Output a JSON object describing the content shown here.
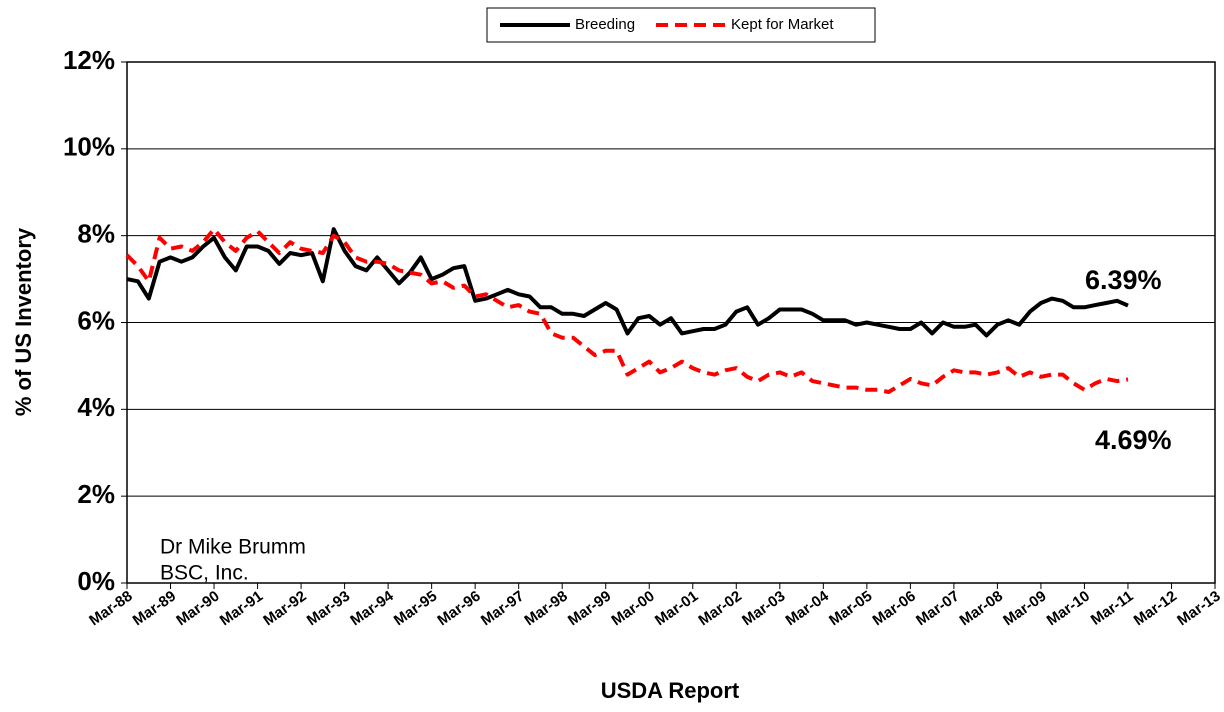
{
  "chart_data": {
    "type": "line",
    "y_label": "% of US Inventory",
    "x_label": "USDA Report",
    "x": [
      0,
      0.25,
      0.5,
      0.75,
      1,
      1.25,
      1.5,
      1.75,
      2,
      2.25,
      2.5,
      2.75,
      3,
      3.25,
      3.5,
      3.75,
      4,
      4.25,
      4.5,
      4.75,
      5,
      5.25,
      5.5,
      5.75,
      6,
      6.25,
      6.5,
      6.75,
      7,
      7.25,
      7.5,
      7.75,
      8,
      8.25,
      8.5,
      8.75,
      9,
      9.25,
      9.5,
      9.75,
      10,
      10.25,
      10.5,
      10.75,
      11,
      11.25,
      11.5,
      11.75,
      12,
      12.25,
      12.5,
      12.75,
      13,
      13.25,
      13.5,
      13.75,
      14,
      14.25,
      14.5,
      14.75,
      15,
      15.25,
      15.5,
      15.75,
      16,
      16.25,
      16.5,
      16.75,
      17,
      17.25,
      17.5,
      17.75,
      18,
      18.25,
      18.5,
      18.75,
      19,
      19.25,
      19.5,
      19.75,
      20,
      20.25,
      20.5,
      20.75,
      21,
      21.25,
      21.5,
      21.75,
      22,
      22.25,
      22.5,
      22.75,
      23
    ],
    "series": [
      {
        "name": "Breeding",
        "color": "#000000",
        "dash": false,
        "values": [
          7.0,
          6.95,
          6.55,
          7.4,
          7.5,
          7.4,
          7.5,
          7.75,
          7.95,
          7.5,
          7.2,
          7.75,
          7.75,
          7.65,
          7.35,
          7.6,
          7.55,
          7.6,
          6.95,
          8.15,
          7.65,
          7.3,
          7.2,
          7.5,
          7.2,
          6.9,
          7.15,
          7.5,
          7.0,
          7.1,
          7.25,
          7.3,
          6.5,
          6.55,
          6.65,
          6.75,
          6.65,
          6.6,
          6.35,
          6.35,
          6.2,
          6.2,
          6.15,
          6.3,
          6.45,
          6.3,
          5.75,
          6.1,
          6.15,
          5.95,
          6.1,
          5.75,
          5.8,
          5.85,
          5.85,
          5.95,
          6.25,
          6.35,
          5.95,
          6.1,
          6.3,
          6.3,
          6.3,
          6.2,
          6.05,
          6.05,
          6.05,
          5.95,
          6.0,
          5.95,
          5.9,
          5.85,
          5.85,
          6.0,
          5.75,
          6.0,
          5.9,
          5.9,
          5.95,
          5.7,
          5.95,
          6.05,
          5.95,
          6.25,
          6.45,
          6.55,
          6.5,
          6.35,
          6.35,
          6.4,
          6.45,
          6.5,
          6.39
        ]
      },
      {
        "name": "Kept for Market",
        "color": "#ff0000",
        "dash": true,
        "values": [
          7.55,
          7.3,
          6.95,
          7.95,
          7.7,
          7.75,
          7.65,
          7.85,
          8.15,
          7.85,
          7.65,
          7.95,
          8.1,
          7.85,
          7.6,
          7.85,
          7.7,
          7.65,
          7.6,
          8.0,
          7.85,
          7.5,
          7.4,
          7.4,
          7.35,
          7.2,
          7.15,
          7.1,
          6.9,
          6.95,
          6.8,
          6.85,
          6.6,
          6.65,
          6.5,
          6.35,
          6.4,
          6.25,
          6.2,
          5.75,
          5.65,
          5.65,
          5.45,
          5.25,
          5.35,
          5.35,
          4.8,
          4.95,
          5.1,
          4.85,
          4.95,
          5.1,
          4.95,
          4.85,
          4.8,
          4.9,
          4.95,
          4.75,
          4.65,
          4.8,
          4.85,
          4.75,
          4.85,
          4.65,
          4.6,
          4.55,
          4.5,
          4.5,
          4.45,
          4.45,
          4.4,
          4.55,
          4.7,
          4.6,
          4.55,
          4.75,
          4.9,
          4.85,
          4.85,
          4.8,
          4.85,
          4.95,
          4.75,
          4.85,
          4.75,
          4.8,
          4.8,
          4.6,
          4.45,
          4.6,
          4.7,
          4.65,
          4.69
        ]
      }
    ],
    "xlim": [
      0,
      25
    ],
    "xticks": [
      {
        "value": 0,
        "label": "Mar-88"
      },
      {
        "value": 1,
        "label": "Mar-89"
      },
      {
        "value": 2,
        "label": "Mar-90"
      },
      {
        "value": 3,
        "label": "Mar-91"
      },
      {
        "value": 4,
        "label": "Mar-92"
      },
      {
        "value": 5,
        "label": "Mar-93"
      },
      {
        "value": 6,
        "label": "Mar-94"
      },
      {
        "value": 7,
        "label": "Mar-95"
      },
      {
        "value": 8,
        "label": "Mar-96"
      },
      {
        "value": 9,
        "label": "Mar-97"
      },
      {
        "value": 10,
        "label": "Mar-98"
      },
      {
        "value": 11,
        "label": "Mar-99"
      },
      {
        "value": 12,
        "label": "Mar-00"
      },
      {
        "value": 13,
        "label": "Mar-01"
      },
      {
        "value": 14,
        "label": "Mar-02"
      },
      {
        "value": 15,
        "label": "Mar-03"
      },
      {
        "value": 16,
        "label": "Mar-04"
      },
      {
        "value": 17,
        "label": "Mar-05"
      },
      {
        "value": 18,
        "label": "Mar-06"
      },
      {
        "value": 19,
        "label": "Mar-07"
      },
      {
        "value": 20,
        "label": "Mar-08"
      },
      {
        "value": 21,
        "label": "Mar-09"
      },
      {
        "value": 22,
        "label": "Mar-10"
      },
      {
        "value": 23,
        "label": "Mar-11"
      },
      {
        "value": 24,
        "label": "Mar-12"
      },
      {
        "value": 25,
        "label": "Mar-13"
      }
    ],
    "ylim": [
      0,
      12
    ],
    "yticks": [
      {
        "value": 0,
        "label": "0%"
      },
      {
        "value": 2,
        "label": "2%"
      },
      {
        "value": 4,
        "label": "4%"
      },
      {
        "value": 6,
        "label": "6%"
      },
      {
        "value": 8,
        "label": "8%"
      },
      {
        "value": 10,
        "label": "10%"
      },
      {
        "value": 12,
        "label": "12%"
      }
    ],
    "grid": true,
    "legend": "top",
    "annotations": [
      {
        "text": "6.39%",
        "x": 23,
        "y": 6.39
      },
      {
        "text": "4.69%",
        "x": 23,
        "y": 4.69
      },
      {
        "text": "Dr Mike Brumm"
      },
      {
        "text": "BSC, Inc."
      }
    ]
  }
}
